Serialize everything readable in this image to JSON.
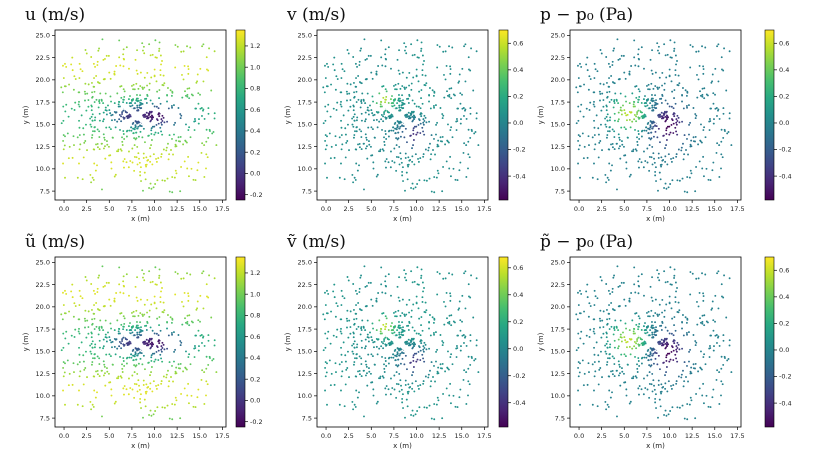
{
  "chart_data": [
    {
      "id": "u",
      "type": "scatter",
      "title": "u  (m/s)",
      "xlabel": "x (m)",
      "ylabel": "y (m)",
      "xlim": [
        -1,
        17.9
      ],
      "ylim": [
        6.5,
        25.6
      ],
      "xticks": [
        0.0,
        2.5,
        5.0,
        7.5,
        10.0,
        12.5,
        15.0,
        17.5
      ],
      "yticks": [
        7.5,
        10.0,
        12.5,
        15.0,
        17.5,
        20.0,
        22.5,
        25.0
      ],
      "colorbar": {
        "min": -0.25,
        "max": 1.35,
        "ticks": [
          -0.2,
          0.0,
          0.2,
          0.4,
          0.6,
          0.8,
          1.0,
          1.2
        ]
      },
      "field": "u"
    },
    {
      "id": "v",
      "type": "scatter",
      "title": "v  (m/s)",
      "xlabel": "x (m)",
      "ylabel": "y (m)",
      "xlim": [
        -1,
        17.9
      ],
      "ylim": [
        6.5,
        25.6
      ],
      "xticks": [
        0.0,
        2.5,
        5.0,
        7.5,
        10.0,
        12.5,
        15.0,
        17.5
      ],
      "yticks": [
        7.5,
        10.0,
        12.5,
        15.0,
        17.5,
        20.0,
        22.5,
        25.0
      ],
      "colorbar": {
        "min": -0.58,
        "max": 0.7,
        "ticks": [
          -0.4,
          -0.2,
          0.0,
          0.2,
          0.4,
          0.6
        ]
      },
      "field": "v"
    },
    {
      "id": "p",
      "type": "scatter",
      "title": "p − p₀ (Pa)",
      "xlabel": "x (m)",
      "ylabel": "y (m)",
      "xlim": [
        -1,
        17.9
      ],
      "ylim": [
        6.5,
        25.6
      ],
      "xticks": [
        0.0,
        2.5,
        5.0,
        7.5,
        10.0,
        12.5,
        15.0,
        17.5
      ],
      "yticks": [
        7.5,
        10.0,
        12.5,
        15.0,
        17.5,
        20.0,
        22.5,
        25.0
      ],
      "colorbar": {
        "min": -0.58,
        "max": 0.7,
        "ticks": [
          -0.4,
          -0.2,
          0.0,
          0.2,
          0.4,
          0.6
        ]
      },
      "field": "p"
    },
    {
      "id": "ut",
      "type": "scatter",
      "title": "ũ  (m/s)",
      "xlabel": "x (m)",
      "ylabel": "y (m)",
      "xlim": [
        -1,
        17.9
      ],
      "ylim": [
        6.5,
        25.6
      ],
      "xticks": [
        0.0,
        2.5,
        5.0,
        7.5,
        10.0,
        12.5,
        15.0,
        17.5
      ],
      "yticks": [
        7.5,
        10.0,
        12.5,
        15.0,
        17.5,
        20.0,
        22.5,
        25.0
      ],
      "colorbar": {
        "min": -0.25,
        "max": 1.35,
        "ticks": [
          -0.2,
          0.0,
          0.2,
          0.4,
          0.6,
          0.8,
          1.0,
          1.2
        ]
      },
      "field": "u"
    },
    {
      "id": "vt",
      "type": "scatter",
      "title": "ṽ  (m/s)",
      "xlabel": "x (m)",
      "ylabel": "y (m)",
      "xlim": [
        -1,
        17.9
      ],
      "ylim": [
        6.5,
        25.6
      ],
      "xticks": [
        0.0,
        2.5,
        5.0,
        7.5,
        10.0,
        12.5,
        15.0,
        17.5
      ],
      "yticks": [
        7.5,
        10.0,
        12.5,
        15.0,
        17.5,
        20.0,
        22.5,
        25.0
      ],
      "colorbar": {
        "min": -0.58,
        "max": 0.68,
        "ticks": [
          -0.4,
          -0.2,
          0.0,
          0.2,
          0.4,
          0.6
        ]
      },
      "field": "v"
    },
    {
      "id": "pt",
      "type": "scatter",
      "title": "p̃ − p₀ (Pa)",
      "xlabel": "x (m)",
      "ylabel": "y (m)",
      "xlim": [
        -1,
        17.9
      ],
      "ylim": [
        6.5,
        25.6
      ],
      "xticks": [
        0.0,
        2.5,
        5.0,
        7.5,
        10.0,
        12.5,
        15.0,
        17.5
      ],
      "yticks": [
        7.5,
        10.0,
        12.5,
        15.0,
        17.5,
        20.0,
        22.5,
        25.0
      ],
      "colorbar": {
        "min": -0.58,
        "max": 0.7,
        "ticks": [
          -0.4,
          -0.2,
          0.0,
          0.2,
          0.4,
          0.6
        ]
      },
      "field": "p"
    }
  ],
  "plate": {
    "x1": 6.5,
    "y1": 17.2,
    "x2": 9.6,
    "y2": 14.7
  },
  "colors": {
    "background": "#ffffff",
    "axis": "#000000",
    "plate": "#ffffff"
  }
}
